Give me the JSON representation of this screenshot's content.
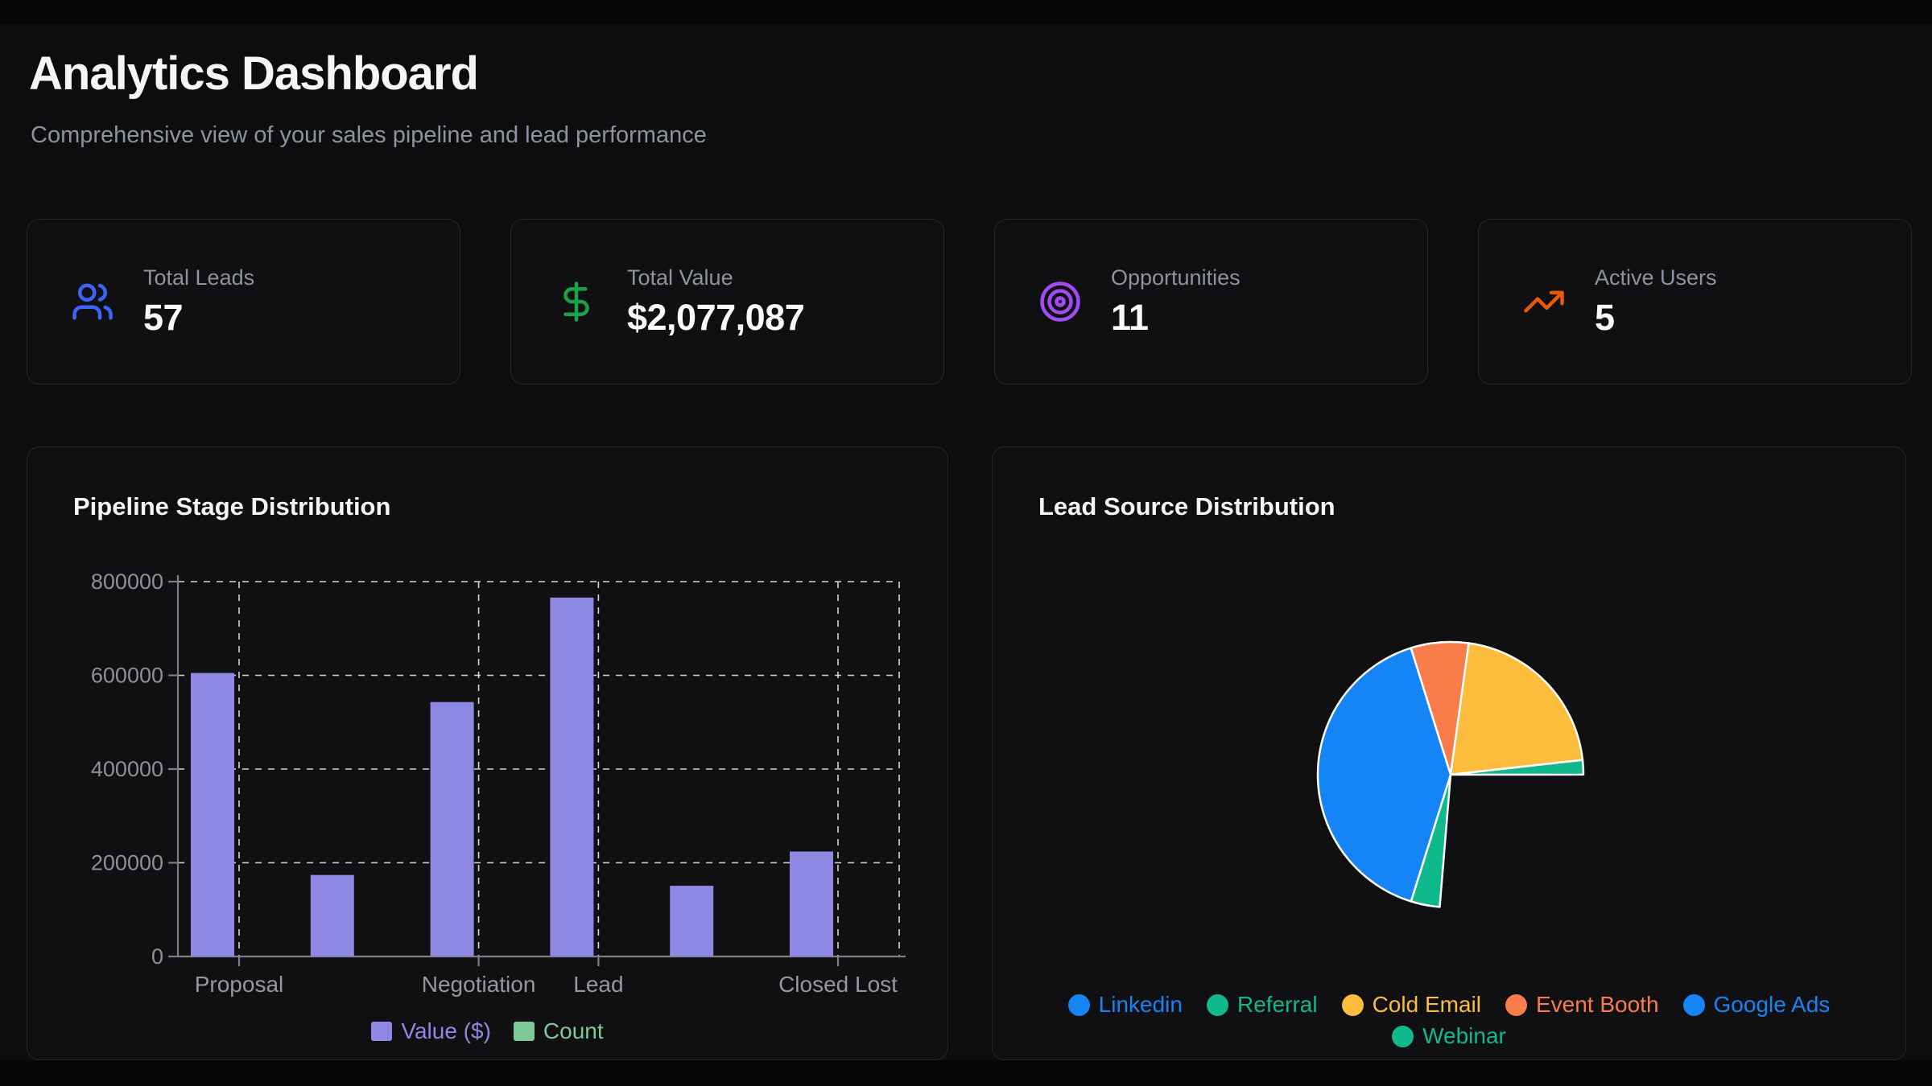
{
  "page": {
    "title": "Analytics Dashboard",
    "subtitle": "Comprehensive view of your sales pipeline and lead performance"
  },
  "stats": [
    {
      "label": "Total Leads",
      "value": "57",
      "icon": "users-icon",
      "icon_color": "#3d65f5"
    },
    {
      "label": "Total Value",
      "value": "$2,077,087",
      "icon": "dollar-sign-icon",
      "icon_color": "#19a24a"
    },
    {
      "label": "Opportunities",
      "value": "11",
      "icon": "target-icon",
      "icon_color": "#a24bf5"
    },
    {
      "label": "Active Users",
      "value": "5",
      "icon": "trending-up-icon",
      "icon_color": "#e8590d"
    }
  ],
  "palette": {
    "blue": "#1584f5",
    "teal": "#10b98b",
    "amber": "#fbbd3b",
    "orange": "#f97c4b",
    "purple": "#8e88e2",
    "green": "#7fc795"
  },
  "chart_data": [
    {
      "type": "bar",
      "title": "Pipeline Stage Distribution",
      "categories": [
        "Proposal",
        "",
        "Negotiation",
        "Lead",
        "",
        "Closed Lost"
      ],
      "xtick_labels_shown": [
        "Proposal",
        "Negotiation",
        "Lead",
        "Closed Lost"
      ],
      "xtick_label_category_indexes": [
        0,
        2,
        3,
        5
      ],
      "ylim": [
        0,
        800000
      ],
      "ytick_labels": [
        "0",
        "200000",
        "400000",
        "600000",
        "800000"
      ],
      "grid_style": "dashed",
      "legend_position": "bottom",
      "series": [
        {
          "name": "Value ($)",
          "color": "#8e88e2",
          "values": [
            605000,
            174000,
            543000,
            766000,
            151000,
            224000
          ]
        },
        {
          "name": "Count",
          "color": "#7fc795",
          "values": [
            null,
            null,
            null,
            null,
            null,
            null
          ]
        }
      ]
    },
    {
      "type": "pie",
      "title": "Lead Source Distribution",
      "start_angle_deg": -17.4,
      "total": 57,
      "slices": [
        {
          "label": "Event Booth",
          "color": "orange",
          "value": 4
        },
        {
          "label": "Cold Email",
          "color": "amber",
          "value": 12
        },
        {
          "label": "Referral",
          "color": "teal",
          "value": 1
        },
        {
          "label": "Google Ads",
          "color": "blue",
          "value": 15,
          "hidden": true
        },
        {
          "label": "Webinar",
          "color": "teal",
          "value": 2
        },
        {
          "label": "Linkedin",
          "color": "blue",
          "value": 23
        }
      ],
      "legend": [
        {
          "label": "Linkedin",
          "color": "blue"
        },
        {
          "label": "Referral",
          "color": "teal"
        },
        {
          "label": "Cold Email",
          "color": "amber"
        },
        {
          "label": "Event Booth",
          "color": "orange"
        },
        {
          "label": "Google Ads",
          "color": "blue"
        },
        {
          "label": "Webinar",
          "color": "teal"
        }
      ],
      "legend_rows": [
        5,
        1
      ]
    }
  ]
}
